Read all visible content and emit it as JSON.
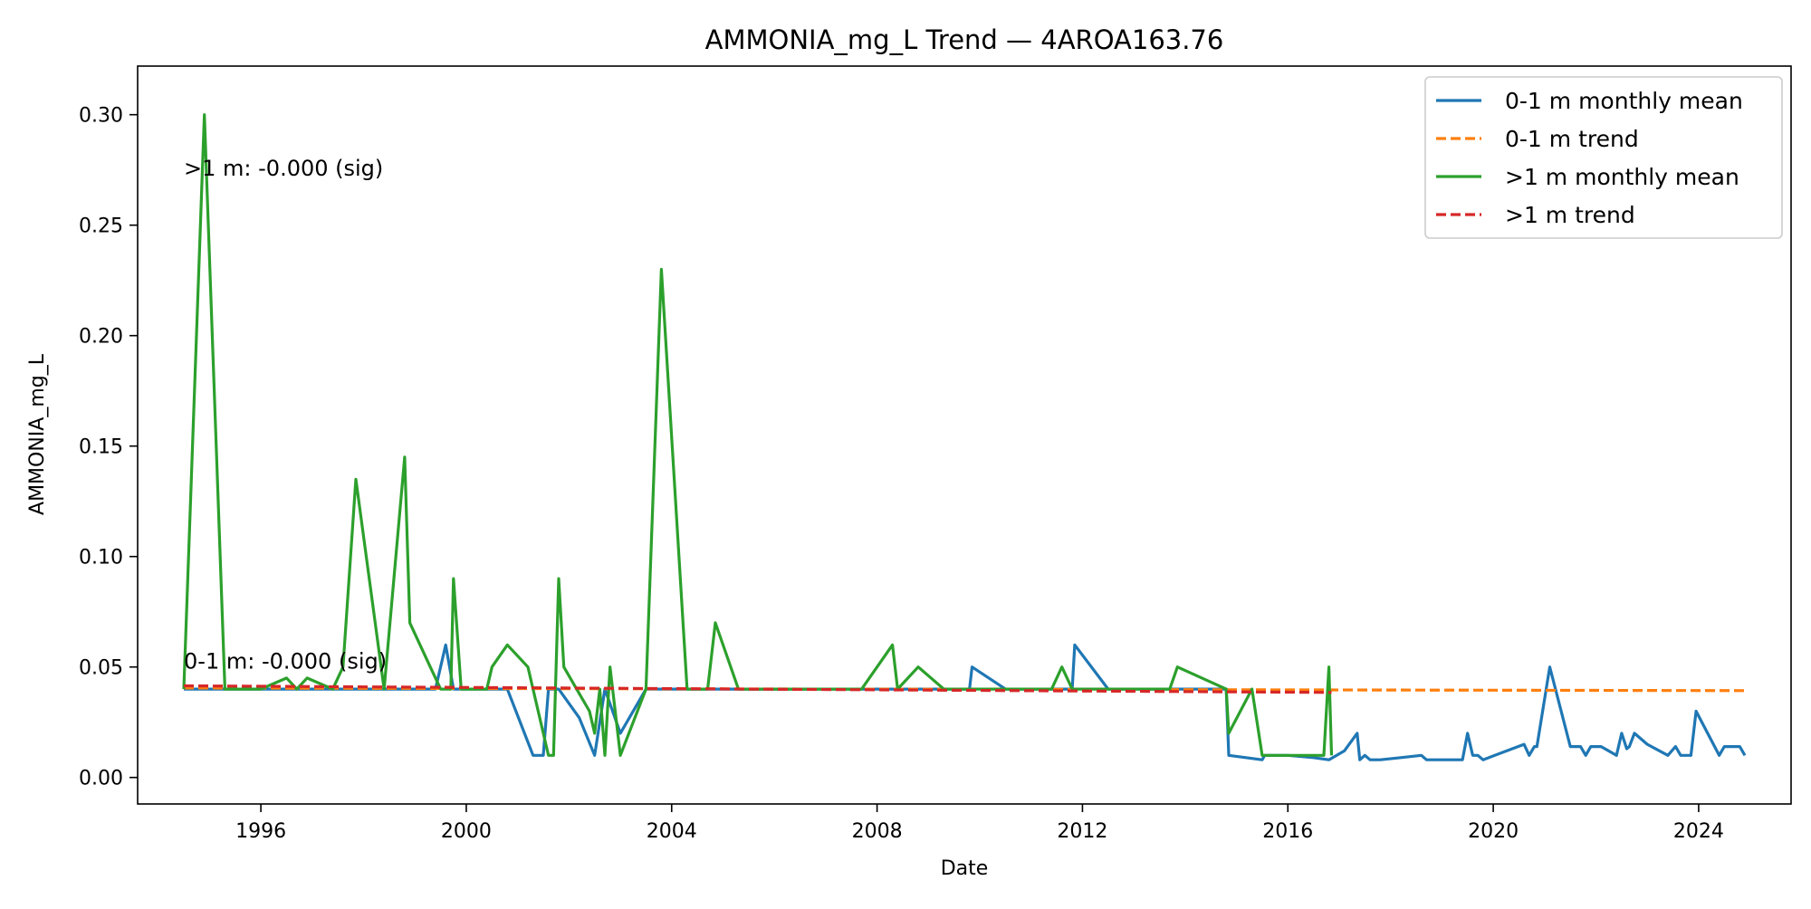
{
  "chart_data": {
    "type": "line",
    "title": "AMMONIA_mg_L Trend — 4AROA163.76",
    "xlabel": "Date",
    "ylabel": "AMMONIA_mg_L",
    "x_type": "date",
    "xlim": [
      1993.6,
      2025.8
    ],
    "ylim": [
      -0.012,
      0.322
    ],
    "x_ticks": [
      1996,
      2000,
      2004,
      2008,
      2012,
      2016,
      2020,
      2024
    ],
    "x_tick_labels": [
      "1996",
      "2000",
      "2004",
      "2008",
      "2012",
      "2016",
      "2020",
      "2024"
    ],
    "y_ticks": [
      0.0,
      0.05,
      0.1,
      0.15,
      0.2,
      0.25,
      0.3
    ],
    "y_tick_labels": [
      "0.00",
      "0.05",
      "0.10",
      "0.15",
      "0.20",
      "0.25",
      "0.30"
    ],
    "grid": false,
    "legend_position": "top-right",
    "series": [
      {
        "name": "0-1 m monthly mean",
        "style": "solid",
        "color": "#1f77b4",
        "x": [
          1994.5,
          1995.5,
          1997.0,
          1998.5,
          1999.4,
          1999.6,
          1999.75,
          2000.3,
          2000.8,
          2001.3,
          2001.5,
          2001.6,
          2001.8,
          2002.2,
          2002.5,
          2002.7,
          2003.0,
          2003.5,
          2005.0,
          2006.0,
          2008.0,
          2009.0,
          2009.8,
          2009.85,
          2010.5,
          2011.0,
          2011.8,
          2011.85,
          2012.5,
          2013.0,
          2014.0,
          2014.8,
          2014.85,
          2015.5,
          2015.55,
          2016.0,
          2016.5,
          2016.8,
          2017.1,
          2017.35,
          2017.4,
          2017.5,
          2017.6,
          2017.8,
          2018.2,
          2018.6,
          2018.7,
          2019.0,
          2019.4,
          2019.5,
          2019.6,
          2019.7,
          2019.8,
          2020.6,
          2020.7,
          2020.8,
          2020.85,
          2021.1,
          2021.5,
          2021.7,
          2021.8,
          2021.9,
          2022.1,
          2022.4,
          2022.5,
          2022.6,
          2022.65,
          2022.75,
          2023.0,
          2023.4,
          2023.55,
          2023.65,
          2023.8,
          2023.85,
          2023.95,
          2024.4,
          2024.5,
          2024.8,
          2024.9
        ],
        "y": [
          0.04,
          0.04,
          0.04,
          0.04,
          0.04,
          0.06,
          0.04,
          0.04,
          0.04,
          0.01,
          0.01,
          0.04,
          0.04,
          0.027,
          0.01,
          0.04,
          0.02,
          0.04,
          0.04,
          0.04,
          0.04,
          0.04,
          0.04,
          0.05,
          0.04,
          0.04,
          0.04,
          0.06,
          0.04,
          0.04,
          0.04,
          0.04,
          0.01,
          0.008,
          0.01,
          0.01,
          0.009,
          0.008,
          0.012,
          0.02,
          0.008,
          0.01,
          0.008,
          0.008,
          0.009,
          0.01,
          0.008,
          0.008,
          0.008,
          0.02,
          0.01,
          0.01,
          0.008,
          0.015,
          0.01,
          0.014,
          0.014,
          0.05,
          0.014,
          0.014,
          0.01,
          0.014,
          0.014,
          0.01,
          0.02,
          0.013,
          0.014,
          0.02,
          0.015,
          0.01,
          0.014,
          0.01,
          0.01,
          0.01,
          0.03,
          0.01,
          0.014,
          0.014,
          0.01
        ]
      },
      {
        "name": "0-1 m trend",
        "style": "dashed",
        "color": "#ff7f0e",
        "x": [
          1994.5,
          2024.9
        ],
        "y": [
          0.0405,
          0.0393
        ]
      },
      {
        "name": ">1 m monthly mean",
        "style": "solid",
        "color": "#2ca02c",
        "x": [
          1994.5,
          1994.9,
          1995.3,
          1996.0,
          1996.5,
          1996.7,
          1996.9,
          1997.4,
          1997.6,
          1997.85,
          1998.4,
          1998.8,
          1998.9,
          1999.3,
          1999.5,
          1999.7,
          1999.75,
          1999.9,
          2000.4,
          2000.5,
          2000.8,
          2001.2,
          2001.6,
          2001.7,
          2001.8,
          2001.9,
          2002.4,
          2002.5,
          2002.6,
          2002.7,
          2002.8,
          2003.0,
          2003.5,
          2003.8,
          2004.3,
          2004.7,
          2004.85,
          2005.3,
          2007.7,
          2008.3,
          2008.4,
          2008.8,
          2009.3,
          2009.5,
          2010.5,
          2011.4,
          2011.6,
          2011.8,
          2012.3,
          2013.7,
          2013.85,
          2014.8,
          2014.85,
          2015.3,
          2015.5,
          2016.7,
          2016.8,
          2016.85
        ],
        "y": [
          0.04,
          0.3,
          0.04,
          0.04,
          0.045,
          0.04,
          0.045,
          0.04,
          0.05,
          0.135,
          0.04,
          0.145,
          0.07,
          0.05,
          0.04,
          0.04,
          0.09,
          0.04,
          0.04,
          0.05,
          0.06,
          0.05,
          0.01,
          0.01,
          0.09,
          0.05,
          0.03,
          0.02,
          0.04,
          0.01,
          0.05,
          0.01,
          0.04,
          0.23,
          0.04,
          0.04,
          0.07,
          0.04,
          0.04,
          0.06,
          0.04,
          0.05,
          0.04,
          0.04,
          0.04,
          0.04,
          0.05,
          0.04,
          0.04,
          0.04,
          0.05,
          0.04,
          0.02,
          0.04,
          0.01,
          0.01,
          0.05,
          0.01
        ]
      },
      {
        "name": ">1 m trend",
        "style": "dashed",
        "color": "#d62728",
        "x": [
          1994.5,
          2016.85
        ],
        "y": [
          0.0415,
          0.0385
        ]
      }
    ],
    "annotations": [
      {
        "text": ">1 m: -0.000 (sig)",
        "x": 1994.5,
        "y": 0.276
      },
      {
        "text": "0-1 m: -0.000 (sig)",
        "x": 1994.5,
        "y": 0.053
      }
    ]
  }
}
